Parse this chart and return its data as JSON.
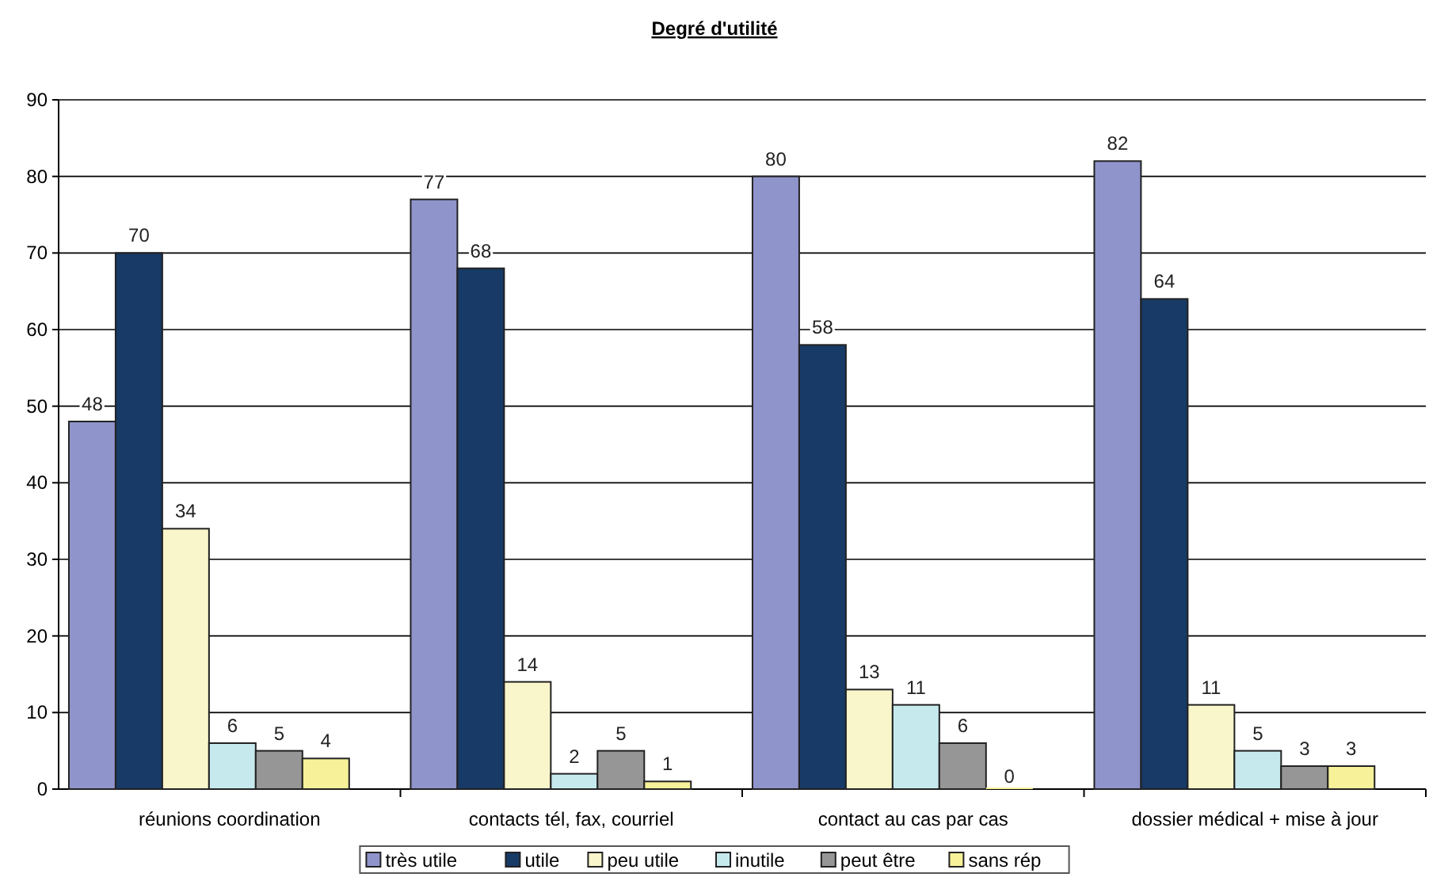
{
  "chart_data": {
    "type": "bar",
    "title": "Degré d'utilité",
    "categories": [
      "réunions coordination",
      "contacts tél, fax, courriel",
      "contact au cas par cas",
      "dossier médical + mise à jour"
    ],
    "series": [
      {
        "name": "très utile",
        "color": "#8f94cb",
        "values": [
          48,
          77,
          80,
          82
        ]
      },
      {
        "name": "utile",
        "color": "#173a66",
        "values": [
          70,
          68,
          58,
          64
        ]
      },
      {
        "name": "peu utile",
        "color": "#f9f6cc",
        "values": [
          34,
          14,
          13,
          11
        ]
      },
      {
        "name": "inutile",
        "color": "#c6e9ee",
        "values": [
          6,
          2,
          11,
          5
        ]
      },
      {
        "name": "peut être",
        "color": "#969696",
        "values": [
          5,
          5,
          6,
          3
        ]
      },
      {
        "name": "sans rép",
        "color": "#f7f19a",
        "values": [
          4,
          1,
          0,
          3
        ]
      }
    ],
    "ylim": [
      0,
      90
    ],
    "yticks": [
      0,
      10,
      20,
      30,
      40,
      50,
      60,
      70,
      80,
      90
    ],
    "grid": "y",
    "legend": "bottom",
    "data_labels": true
  }
}
